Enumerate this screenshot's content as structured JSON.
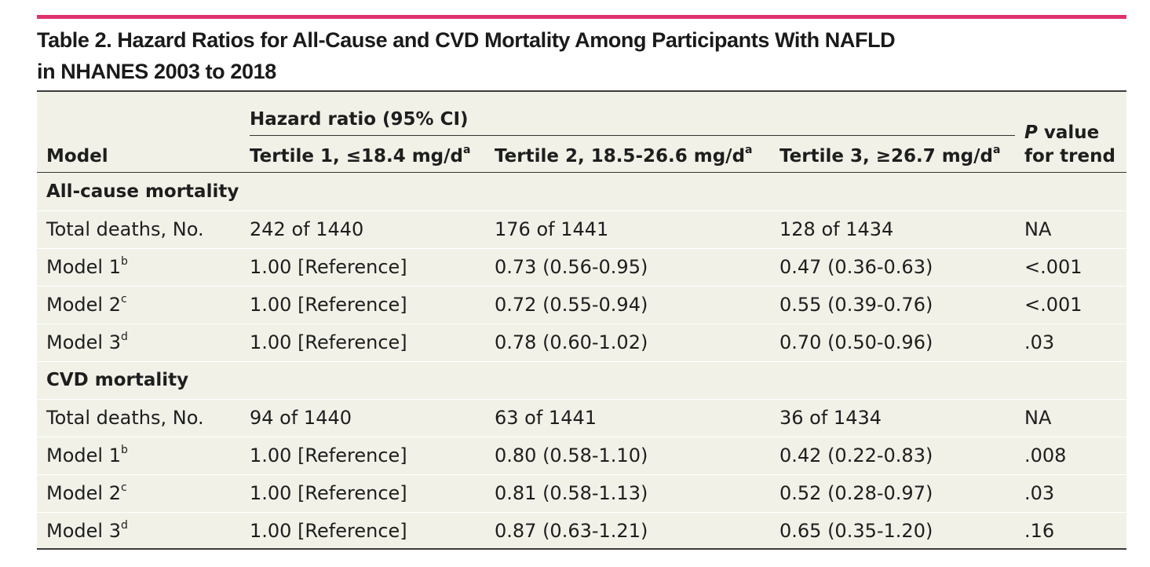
{
  "title_line1": "Table 2. Hazard Ratios for All-Cause and CVD Mortality Among Participants With NAFLD",
  "title_line2": "in NHANES 2003 to 2018",
  "header": {
    "group": "Hazard ratio (95% CI)",
    "model": "Model",
    "tertile1": "Tertile 1, ≤18.4 mg/d",
    "tertile2": "Tertile 2, 18.5-26.6 mg/d",
    "tertile3": "Tertile 3, ≥26.7 mg/d",
    "footnote": "a",
    "p_italic": "P",
    "p_line1": " value",
    "p_line2": "for trend"
  },
  "sections": [
    {
      "title": "All-cause mortality",
      "rows": [
        {
          "model": "Total deaths, No.",
          "sup": "",
          "t1": "242 of 1440",
          "t2": "176 of 1441",
          "t3": "128 of 1434",
          "p": "NA"
        },
        {
          "model": "Model 1",
          "sup": "b",
          "t1": "1.00 [Reference]",
          "t2": "0.73 (0.56-0.95)",
          "t3": "0.47 (0.36-0.63)",
          "p": "<.001"
        },
        {
          "model": "Model 2",
          "sup": "c",
          "t1": "1.00 [Reference]",
          "t2": "0.72 (0.55-0.94)",
          "t3": "0.55 (0.39-0.76)",
          "p": "<.001"
        },
        {
          "model": "Model 3",
          "sup": "d",
          "t1": "1.00 [Reference]",
          "t2": "0.78 (0.60-1.02)",
          "t3": "0.70 (0.50-0.96)",
          "p": ".03"
        }
      ]
    },
    {
      "title": "CVD mortality",
      "rows": [
        {
          "model": "Total deaths, No.",
          "sup": "",
          "t1": "94 of 1440",
          "t2": "63 of 1441",
          "t3": "36 of 1434",
          "p": "NA"
        },
        {
          "model": "Model 1",
          "sup": "b",
          "t1": "1.00 [Reference]",
          "t2": "0.80 (0.58-1.10)",
          "t3": "0.42 (0.22-0.83)",
          "p": ".008"
        },
        {
          "model": "Model 2",
          "sup": "c",
          "t1": "1.00 [Reference]",
          "t2": "0.81 (0.58-1.13)",
          "t3": "0.52 (0.28-0.97)",
          "p": ".03"
        },
        {
          "model": "Model 3",
          "sup": "d",
          "t1": "1.00 [Reference]",
          "t2": "0.87 (0.63-1.21)",
          "t3": "0.65 (0.35-1.20)",
          "p": ".16"
        }
      ]
    }
  ]
}
